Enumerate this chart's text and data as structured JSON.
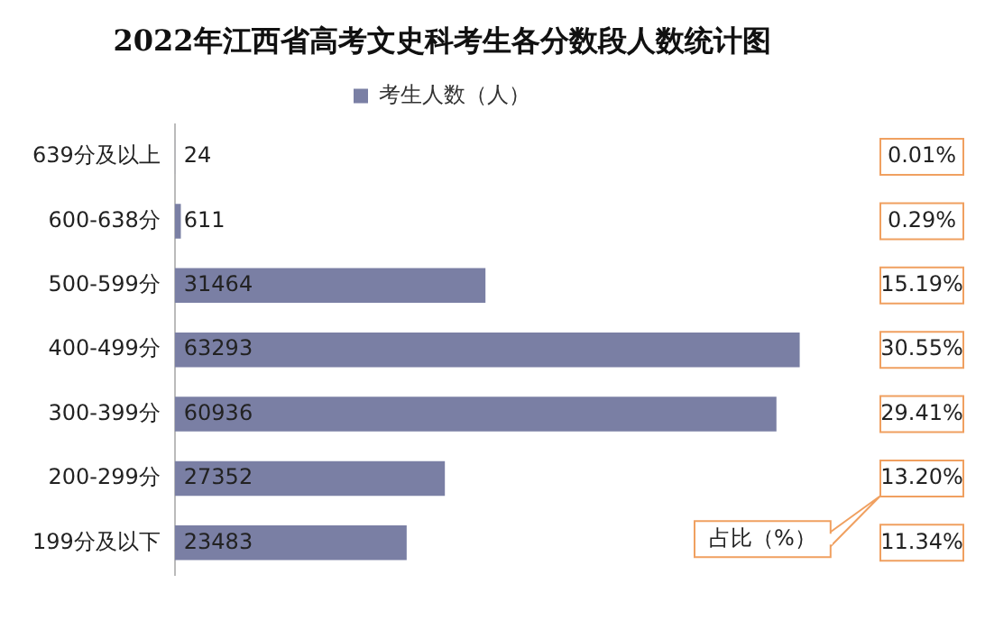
{
  "chart_data": {
    "type": "bar",
    "orientation": "horizontal",
    "title": "2022年江西省高考文史科考生各分数段人数统计图",
    "categories": [
      "639分及以上",
      "600-638分",
      "500-599分",
      "400-499分",
      "300-399分",
      "200-299分",
      "199分及以下"
    ],
    "series": [
      {
        "name": "考生人数（人）",
        "color": "#7a7fa4",
        "values": [
          24,
          611,
          31464,
          63293,
          60936,
          27352,
          23483
        ]
      }
    ],
    "data_labels": true,
    "legend": "top",
    "grid": false,
    "tick_labels": "y",
    "annotations": [
      "0.01%",
      "0.29%",
      "15.19%",
      "30.55%",
      "29.41%",
      "13.20%",
      "11.34%",
      "占比（%）"
    ]
  }
}
